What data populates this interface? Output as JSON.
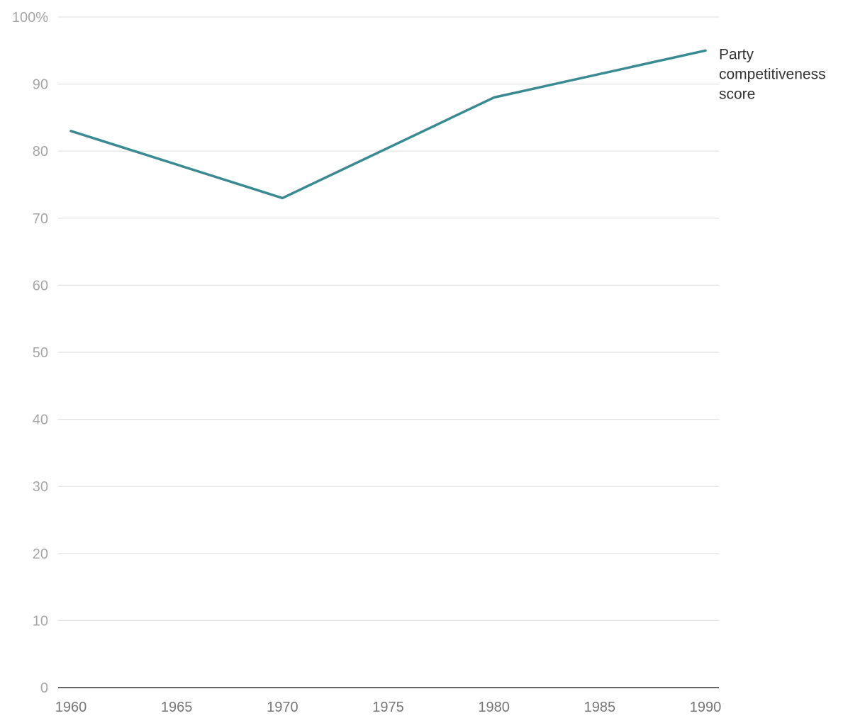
{
  "chart_data": {
    "type": "line",
    "title": "",
    "xlabel": "",
    "ylabel": "",
    "x": [
      1960,
      1970,
      1980,
      1990
    ],
    "series": [
      {
        "name": "Party competitiveness score",
        "label_lines": [
          "Party",
          "competitiveness",
          "score"
        ],
        "color": "#3a8b91",
        "values": [
          83,
          73,
          88,
          95
        ]
      }
    ],
    "xlim": [
      1960,
      1990
    ],
    "ylim": [
      0,
      100
    ],
    "x_ticks": [
      1960,
      1965,
      1970,
      1975,
      1980,
      1985,
      1990
    ],
    "x_tick_labels": [
      "1960",
      "1965",
      "1970",
      "1975",
      "1980",
      "1985",
      "1990"
    ],
    "y_ticks": [
      0,
      10,
      20,
      30,
      40,
      50,
      60,
      70,
      80,
      90,
      100
    ],
    "y_tick_labels": [
      "0",
      "10",
      "20",
      "30",
      "40",
      "50",
      "60",
      "70",
      "80",
      "90",
      "100%"
    ],
    "grid": true,
    "legend": "direct label at line end"
  }
}
